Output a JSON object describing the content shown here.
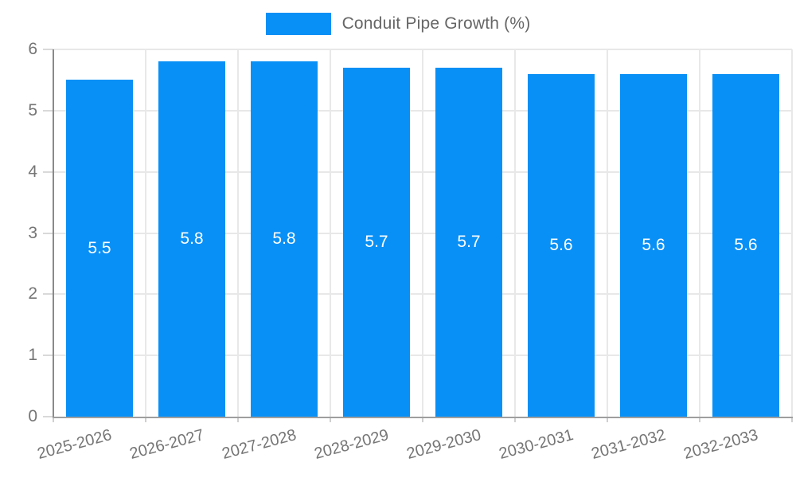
{
  "legend": {
    "label": "Conduit Pipe Growth (%)"
  },
  "colors": {
    "bar": "#0990f6",
    "bar_value_text": "#ffffff",
    "axis_text": "#757575",
    "legend_text": "#666666",
    "gridline": "#e8e8e8",
    "axis_line": "#8a8a8a"
  },
  "chart_data": {
    "type": "bar",
    "title": "",
    "xlabel": "",
    "ylabel": "",
    "categories": [
      "2025-2026",
      "2026-2027",
      "2027-2028",
      "2028-2029",
      "2029-2030",
      "2030-2031",
      "2031-2032",
      "2032-2033"
    ],
    "series": [
      {
        "name": "Conduit Pipe Growth (%)",
        "values": [
          5.5,
          5.8,
          5.8,
          5.7,
          5.7,
          5.6,
          5.6,
          5.6
        ]
      }
    ],
    "value_labels": [
      "5.5",
      "5.8",
      "5.8",
      "5.7",
      "5.7",
      "5.6",
      "5.6",
      "5.6"
    ],
    "ylim": [
      0,
      6
    ],
    "yticks": [
      0,
      1,
      2,
      3,
      4,
      5,
      6
    ],
    "grid": true,
    "legend_position": "top-center",
    "x_label_rotation_deg": -15
  }
}
